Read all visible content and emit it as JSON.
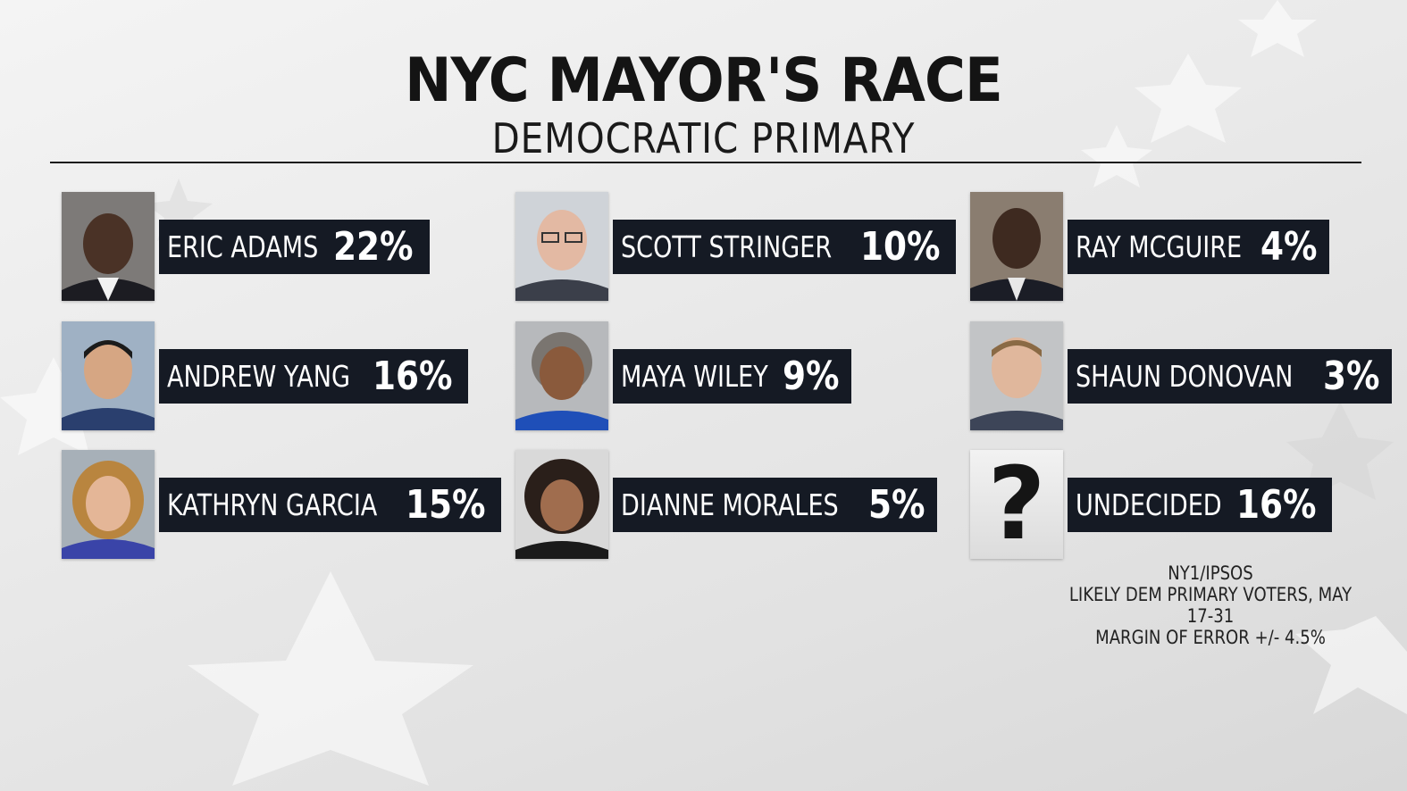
{
  "header": {
    "title": "NYC MAYOR'S RACE",
    "subtitle": "DEMOCRATIC PRIMARY"
  },
  "candidates": [
    {
      "name": "ERIC ADAMS",
      "pct": "22%",
      "value": 22,
      "photo": "portrait"
    },
    {
      "name": "ANDREW YANG",
      "pct": "16%",
      "value": 16,
      "photo": "portrait"
    },
    {
      "name": "KATHRYN GARCIA",
      "pct": "15%",
      "value": 15,
      "photo": "portrait"
    },
    {
      "name": "SCOTT STRINGER",
      "pct": "10%",
      "value": 10,
      "photo": "portrait"
    },
    {
      "name": "MAYA WILEY",
      "pct": "9%",
      "value": 9,
      "photo": "portrait"
    },
    {
      "name": "DIANNE MORALES",
      "pct": "5%",
      "value": 5,
      "photo": "portrait"
    },
    {
      "name": "RAY MCGUIRE",
      "pct": "4%",
      "value": 4,
      "photo": "portrait"
    },
    {
      "name": "SHAUN DONOVAN",
      "pct": "3%",
      "value": 3,
      "photo": "portrait"
    },
    {
      "name": "UNDECIDED",
      "pct": "16%",
      "value": 16,
      "photo": "question-mark",
      "glyph": "?"
    }
  ],
  "source": {
    "line1": "NY1/IPSOS",
    "line2": "LIKELY DEM PRIMARY VOTERS, MAY 17-31",
    "line3": "MARGIN OF ERROR +/- 4.5%"
  },
  "colors": {
    "label_bg": "#151a24",
    "label_text": "#ffffff",
    "title_text": "#141414"
  }
}
